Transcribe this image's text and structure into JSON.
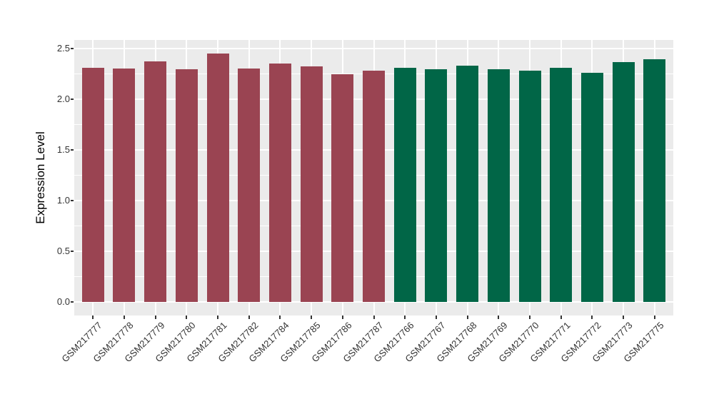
{
  "figure": {
    "background": "#FFFFFF",
    "panel_background": "#EBEBEB",
    "gridline_color": "#FFFFFF",
    "tick_text_color": "#333333",
    "axis_title_color": "#000000"
  },
  "y_axis": {
    "title": "Expression Level",
    "tick_labels": [
      "0.0",
      "0.5",
      "1.0",
      "1.5",
      "2.0",
      "2.5"
    ]
  },
  "chart_data": {
    "type": "bar",
    "title": "",
    "xlabel": "",
    "ylabel": "Expression Level",
    "ylim": [
      0,
      2.5
    ],
    "yticks": [
      0.0,
      0.5,
      1.0,
      1.5,
      2.0,
      2.5
    ],
    "yminor": [
      0.25,
      0.75,
      1.25,
      1.75,
      2.25
    ],
    "grid": "major and minor horizontal white lines, major vertical white lines at each bar center, on grey panel",
    "legend_position": "none",
    "x_tick_rotation_degrees": 45,
    "categories": [
      "GSM217777",
      "GSM217778",
      "GSM217779",
      "GSM217780",
      "GSM217781",
      "GSM217782",
      "GSM217784",
      "GSM217785",
      "GSM217786",
      "GSM217787",
      "GSM217766",
      "GSM217767",
      "GSM217768",
      "GSM217769",
      "GSM217770",
      "GSM217771",
      "GSM217772",
      "GSM217773",
      "GSM217775"
    ],
    "values": [
      2.31,
      2.3,
      2.37,
      2.29,
      2.45,
      2.3,
      2.35,
      2.32,
      2.24,
      2.28,
      2.31,
      2.29,
      2.33,
      2.29,
      2.28,
      2.31,
      2.26,
      2.36,
      2.39
    ],
    "bar_colors": [
      "#9A4452",
      "#9A4452",
      "#9A4452",
      "#9A4452",
      "#9A4452",
      "#9A4452",
      "#9A4452",
      "#9A4452",
      "#9A4452",
      "#9A4452",
      "#016647",
      "#016647",
      "#016647",
      "#016647",
      "#016647",
      "#016647",
      "#016647",
      "#016647",
      "#016647"
    ],
    "group_colors": {
      "GSM217777_to_GSM217787": "#9A4452",
      "GSM217766_to_GSM217775": "#016647"
    }
  }
}
